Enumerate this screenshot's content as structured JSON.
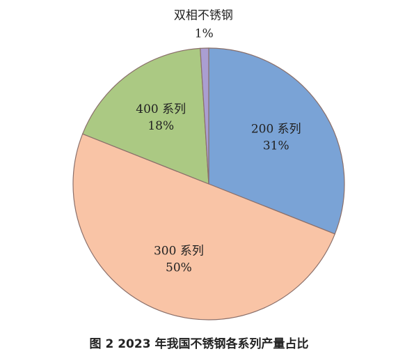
{
  "chart_data": {
    "type": "pie",
    "title": "图 2 2023 年我国不锈钢各系列产量占比",
    "categories": [
      "200 系列",
      "300 系列",
      "400 系列",
      "双相不锈钢"
    ],
    "values": [
      31,
      50,
      18,
      1
    ],
    "value_labels": [
      "31%",
      "50%",
      "18%",
      "1%"
    ],
    "colors": [
      "#7aa3d6",
      "#f9c4a6",
      "#abc983",
      "#aa9ed2"
    ]
  }
}
